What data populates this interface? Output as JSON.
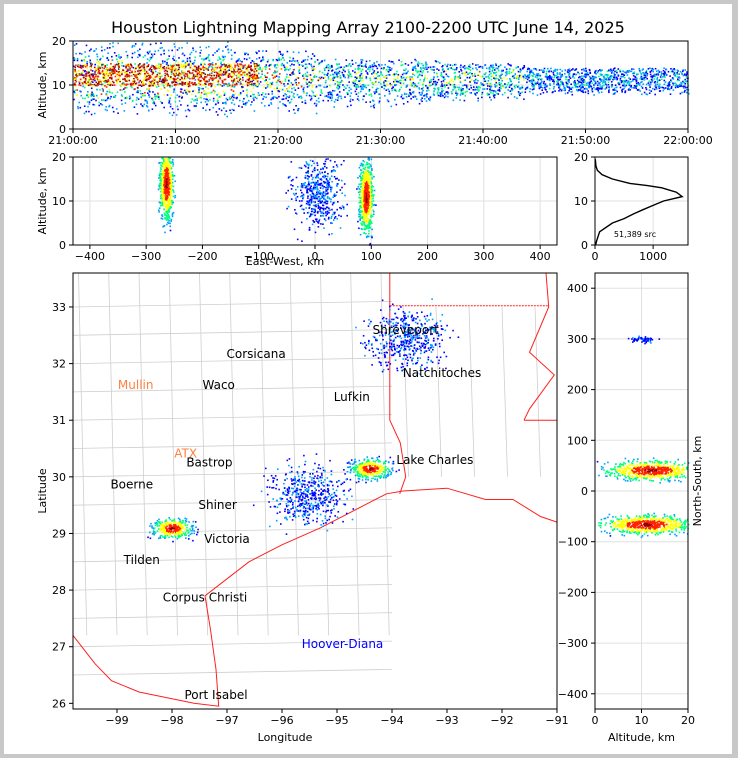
{
  "title": "Houston Lightning Mapping Array 2100-2200 UTC June 14, 2025",
  "source_count_label": "51,389 src",
  "chart_data": [
    {
      "panel": "altitude-vs-time",
      "type": "heatmap",
      "ylabel": "Altitude, km",
      "ylim": [
        0,
        20
      ],
      "yticks": [
        "0",
        "10",
        "20"
      ],
      "xticks": [
        "21:00:00",
        "21:10:00",
        "21:20:00",
        "21:30:00",
        "21:40:00",
        "21:50:00",
        "22:00:00"
      ],
      "bands": [
        {
          "t0": 0,
          "t1": 16,
          "z0": 3,
          "z1": 20,
          "level": 4
        },
        {
          "t0": 16,
          "t1": 24,
          "z0": 3,
          "z1": 18,
          "level": 3
        },
        {
          "t0": 24,
          "t1": 36,
          "z0": 4,
          "z1": 16,
          "level": 2
        },
        {
          "t0": 36,
          "t1": 44,
          "z0": 5,
          "z1": 15,
          "level": 2
        },
        {
          "t0": 44,
          "t1": 60,
          "z0": 7,
          "z1": 14,
          "level": 1
        }
      ],
      "colors": [
        "#0000ff",
        "#00a0ff",
        "#00ff80",
        "#ffff00",
        "#ff2000",
        "#8b0000"
      ]
    },
    {
      "panel": "altitude-vs-east-west",
      "type": "heatmap",
      "xlabel": "East-West, km",
      "ylabel": "Altitude, km",
      "xlim": [
        -430,
        430
      ],
      "ylim": [
        0,
        20
      ],
      "xticks": [
        "−400",
        "−300",
        "−200",
        "−100",
        "0",
        "100",
        "200",
        "300",
        "400"
      ],
      "yticks": [
        "0",
        "10",
        "20"
      ],
      "cells": [
        {
          "x": -265,
          "z": 14,
          "intensity": 5
        },
        {
          "x": 90,
          "z": 11,
          "intensity": 5
        },
        {
          "x": 5,
          "z": 12,
          "intensity": 1
        }
      ]
    },
    {
      "panel": "altitude-histogram",
      "type": "line",
      "xlim": [
        0,
        1600
      ],
      "ylim": [
        0,
        20
      ],
      "xticks": [
        "0",
        "1000"
      ],
      "yticks": [
        "0",
        "10",
        "20"
      ],
      "x": [
        10,
        30,
        80,
        300,
        500,
        650,
        820,
        1000,
        1180,
        1500,
        1400,
        1150,
        900,
        600,
        300,
        120,
        40,
        15,
        5
      ],
      "y": [
        0,
        1,
        3,
        5,
        6,
        7,
        8,
        9,
        10,
        11,
        12,
        13,
        13.5,
        14,
        15,
        16,
        17,
        18,
        19.5
      ]
    },
    {
      "panel": "plan-view-map",
      "type": "scatter",
      "xlabel": "Longitude",
      "ylabel": "Latitude",
      "xlim": [
        -99.8,
        -91
      ],
      "ylim": [
        25.9,
        33.6
      ],
      "xticks": [
        "−99",
        "−98",
        "−97",
        "−96",
        "−95",
        "−94",
        "−93",
        "−92",
        "−91"
      ],
      "yticks": [
        "26",
        "27",
        "28",
        "29",
        "30",
        "31",
        "32",
        "33"
      ],
      "places": [
        {
          "name": "Shreveport",
          "lon": -93.75,
          "lat": 32.52,
          "color": "#000000"
        },
        {
          "name": "Corsicana",
          "lon": -96.47,
          "lat": 32.1,
          "color": "#000000"
        },
        {
          "name": "Natchitoches",
          "lon": -93.09,
          "lat": 31.76,
          "color": "#000000"
        },
        {
          "name": "Mullin",
          "lon": -98.66,
          "lat": 31.55,
          "color": "#ff8040"
        },
        {
          "name": "Waco",
          "lon": -97.15,
          "lat": 31.55,
          "color": "#000000"
        },
        {
          "name": "Lufkin",
          "lon": -94.73,
          "lat": 31.34,
          "color": "#000000"
        },
        {
          "name": "ATX",
          "lon": -97.75,
          "lat": 30.34,
          "color": "#ff8040"
        },
        {
          "name": "Bastrop",
          "lon": -97.32,
          "lat": 30.18,
          "color": "#000000"
        },
        {
          "name": "Lake Charles",
          "lon": -93.22,
          "lat": 30.23,
          "color": "#000000"
        },
        {
          "name": "Boerne",
          "lon": -98.73,
          "lat": 29.79,
          "color": "#000000"
        },
        {
          "name": "Shiner",
          "lon": -97.17,
          "lat": 29.43,
          "color": "#000000"
        },
        {
          "name": "Victoria",
          "lon": -97.0,
          "lat": 28.83,
          "color": "#000000"
        },
        {
          "name": "Tilden",
          "lon": -98.55,
          "lat": 28.46,
          "color": "#000000"
        },
        {
          "name": "Corpus Christi",
          "lon": -97.4,
          "lat": 27.8,
          "color": "#000000"
        },
        {
          "name": "Hoover-Diana",
          "lon": -94.9,
          "lat": 26.98,
          "color": "#0000ff"
        },
        {
          "name": "Port Isabel",
          "lon": -97.2,
          "lat": 26.08,
          "color": "#000000"
        }
      ],
      "storms": [
        {
          "lon": -98.0,
          "lat": 29.1,
          "intensity": 5
        },
        {
          "lon": -94.4,
          "lat": 30.15,
          "intensity": 5
        },
        {
          "lon": -95.55,
          "lat": 29.7,
          "intensity": 1
        },
        {
          "lon": -93.75,
          "lat": 32.45,
          "intensity": 1
        }
      ]
    },
    {
      "panel": "north-south-vs-altitude",
      "type": "heatmap",
      "xlabel": "Altitude, km",
      "ylabel": "North-South, km",
      "xlim": [
        0,
        20
      ],
      "ylim": [
        -430,
        430
      ],
      "xticks": [
        "0",
        "10",
        "20"
      ],
      "yticks": [
        "−400",
        "−300",
        "−200",
        "−100",
        "0",
        "100",
        "200",
        "300",
        "400"
      ],
      "cells": [
        {
          "z": 12,
          "ns": 42,
          "intensity": 5
        },
        {
          "z": 11,
          "ns": -65,
          "intensity": 5
        },
        {
          "z": 10,
          "ns": 300,
          "intensity": 1
        }
      ]
    }
  ]
}
